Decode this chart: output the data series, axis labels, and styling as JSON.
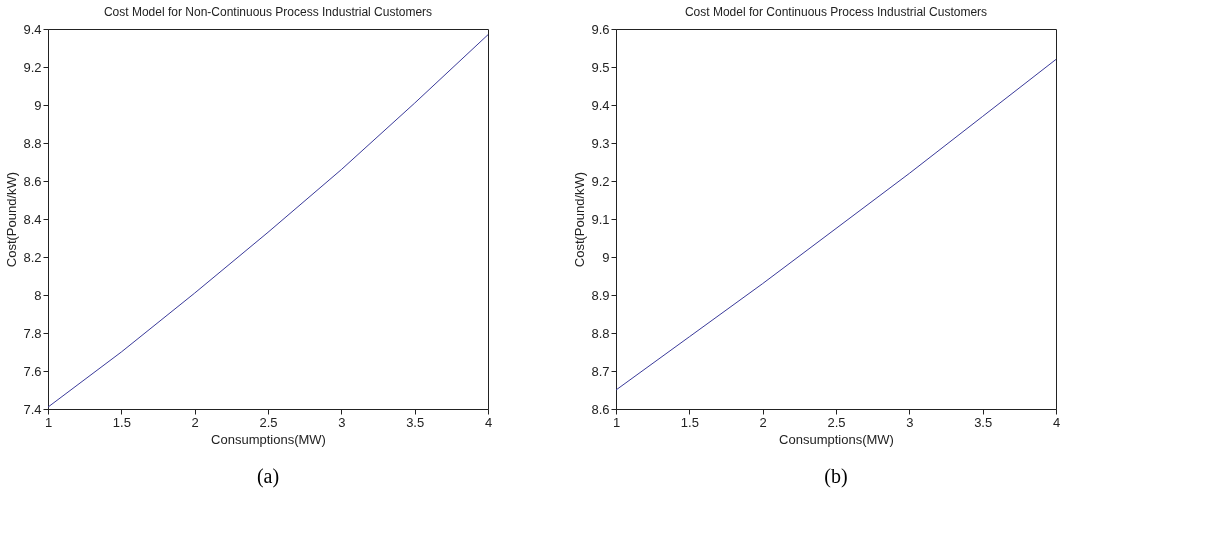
{
  "chart_data": [
    {
      "type": "line",
      "title": "Cost Model for Non-Continuous Process Industrial Customers",
      "xlabel": "Consumptions(MW)",
      "ylabel": "Cost(Pound/kW)",
      "x": [
        1,
        1.5,
        2,
        2.5,
        3,
        3.5,
        4
      ],
      "series": [
        {
          "color": "#3a3a9a",
          "values": [
            7.41,
            7.7,
            8.01,
            8.33,
            8.66,
            9.01,
            9.37
          ]
        }
      ],
      "xlim": [
        1,
        4
      ],
      "xticks": [
        1,
        1.5,
        2,
        2.5,
        3,
        3.5,
        4
      ],
      "ylim": [
        7.4,
        9.4
      ],
      "yticks": [
        7.4,
        7.6,
        7.8,
        8,
        8.2,
        8.4,
        8.6,
        8.8,
        9,
        9.2,
        9.4
      ],
      "grid": false,
      "annotations": [
        "(a)"
      ]
    },
    {
      "type": "line",
      "title": "Cost Model for Continuous Process Industrial Customers",
      "xlabel": "Consumptions(MW)",
      "ylabel": "Cost(Pound/kW)",
      "x": [
        1,
        1.5,
        2,
        2.5,
        3,
        3.5,
        4
      ],
      "series": [
        {
          "color": "#3a3a9a",
          "values": [
            8.65,
            8.79,
            8.93,
            9.075,
            9.22,
            9.37,
            9.52
          ]
        }
      ],
      "xlim": [
        1,
        4
      ],
      "xticks": [
        1,
        1.5,
        2,
        2.5,
        3,
        3.5,
        4
      ],
      "ylim": [
        8.6,
        9.6
      ],
      "yticks": [
        8.6,
        8.7,
        8.8,
        8.9,
        9,
        9.1,
        9.2,
        9.3,
        9.4,
        9.5,
        9.6
      ],
      "grid": false,
      "annotations": [
        "(b)"
      ]
    }
  ]
}
